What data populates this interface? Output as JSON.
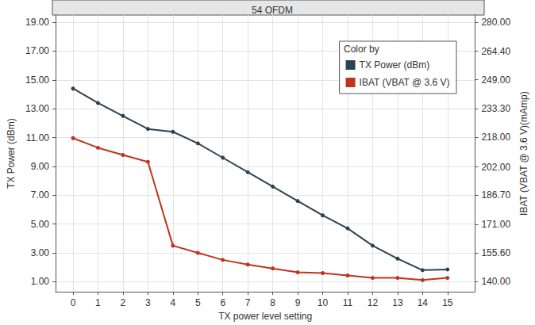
{
  "chart_data": {
    "type": "line",
    "title": "54 OFDM",
    "x_label": "TX power level setting",
    "y_label": "TX Power (dBm)",
    "y2_label": "IBAT (VBAT @ 3.6 V)(mAmp)",
    "legend_title": "Color by",
    "x": [
      0,
      1,
      2,
      3,
      4,
      5,
      6,
      7,
      8,
      9,
      10,
      11,
      12,
      13,
      14,
      15
    ],
    "xlim": [
      -0.7,
      16.1
    ],
    "xticks": [
      0,
      1,
      2,
      3,
      4,
      5,
      6,
      7,
      8,
      9,
      10,
      11,
      12,
      13,
      14,
      15
    ],
    "ylim": [
      0.3,
      19.5
    ],
    "yticks": [
      {
        "value": 1,
        "label": "1.00"
      },
      {
        "value": 3,
        "label": "3.00"
      },
      {
        "value": 5,
        "label": "5.00"
      },
      {
        "value": 7,
        "label": "7.00"
      },
      {
        "value": 9,
        "label": "9.00"
      },
      {
        "value": 11,
        "label": "11.00"
      },
      {
        "value": 13,
        "label": "13.00"
      },
      {
        "value": 15,
        "label": "15.00"
      },
      {
        "value": 17,
        "label": "17.00"
      },
      {
        "value": 19,
        "label": "19.00"
      }
    ],
    "y2lim": [
      134.6,
      283.9
    ],
    "y2ticks": [
      {
        "value": 140,
        "label": "140.00"
      },
      {
        "value": 155.6,
        "label": "155.60"
      },
      {
        "value": 171,
        "label": "171.00"
      },
      {
        "value": 186.7,
        "label": "186.70"
      },
      {
        "value": 202,
        "label": "202.00"
      },
      {
        "value": 218,
        "label": "218.00"
      },
      {
        "value": 233.3,
        "label": "233.30"
      },
      {
        "value": 249,
        "label": "249.00"
      },
      {
        "value": 264.4,
        "label": "264.40"
      },
      {
        "value": 280,
        "label": "280.00"
      }
    ],
    "grid": true,
    "legend": "top-right",
    "series": [
      {
        "name": "TX Power (dBm)",
        "color": "#2c4352",
        "marker": "circle",
        "values": [
          14.4,
          13.4,
          12.5,
          11.6,
          11.4,
          10.6,
          9.6,
          8.6,
          7.6,
          6.6,
          5.6,
          4.7,
          3.5,
          2.6,
          1.8,
          1.85
        ]
      },
      {
        "name": "IBAT (VBAT @ 3.6 V)",
        "color": "#c0341d",
        "marker": "circle",
        "axis": "y2",
        "values": [
          217.5,
          212.3,
          208.4,
          204.7,
          159.5,
          155.6,
          151.8,
          149.3,
          147.2,
          145.1,
          144.7,
          143.4,
          142.1,
          142.1,
          140.9,
          142.1
        ]
      }
    ]
  }
}
